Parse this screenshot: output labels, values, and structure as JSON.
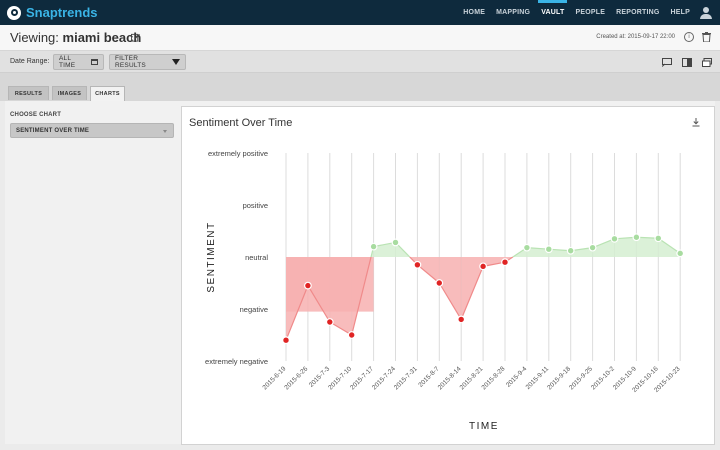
{
  "app": {
    "name": "Snaptrends"
  },
  "nav": {
    "items": [
      "HOME",
      "MAPPING",
      "VAULT",
      "PEOPLE",
      "REPORTING",
      "HELP"
    ],
    "active": "VAULT"
  },
  "header": {
    "viewing_label": "Viewing:",
    "vault_name": "miami beach",
    "created": "Created at: 2015-09-17 22:00"
  },
  "filters": {
    "date_range_label": "Date Range:",
    "date_range_value": "ALL TIME",
    "filter_button": "FILTER RESULTS"
  },
  "tabs": [
    "RESULTS",
    "IMAGES",
    "CHARTS"
  ],
  "active_tab": "CHARTS",
  "sidebar": {
    "choose_label": "CHOOSE CHART",
    "selected_chart": "SENTIMENT OVER TIME"
  },
  "colors": {
    "topbar": "#0e2a3d",
    "accent": "#3ab4e6",
    "negative": "#e02424",
    "positive": "#a8dca0",
    "negative_fill": "#f7b0b0",
    "positive_fill": "#d5efd1"
  },
  "icons": [
    "snaptrends-logo-icon",
    "user-icon",
    "edit-icon",
    "info-icon",
    "trash-icon",
    "calendar-icon",
    "funnel-icon",
    "screen-share-icon",
    "split-view-icon",
    "layers-icon",
    "download-icon"
  ],
  "chart_data": {
    "type": "area",
    "title": "Sentiment Over Time",
    "xlabel": "TIME",
    "ylabel": "SENTIMENT",
    "y_categories": [
      "extremely negative",
      "negative",
      "neutral",
      "positive",
      "extremely positive"
    ],
    "y_range": [
      -2,
      2
    ],
    "grid": "vertical",
    "x": [
      "2015-6-19",
      "2015-6-26",
      "2015-7-3",
      "2015-7-10",
      "2015-7-17",
      "2015-7-24",
      "2015-7-31",
      "2015-8-7",
      "2015-8-14",
      "2015-8-21",
      "2015-8-28",
      "2015-9-4",
      "2015-9-11",
      "2015-9-18",
      "2015-9-25",
      "2015-10-2",
      "2015-10-9",
      "2015-10-16",
      "2015-10-23"
    ],
    "points": [
      {
        "x": 0,
        "y": -1.6
      },
      {
        "x": 1,
        "y": -0.55
      },
      {
        "x": 2,
        "y": -1.25
      },
      {
        "x": 3,
        "y": -1.5
      },
      {
        "x": 4,
        "y": 0.2
      },
      {
        "x": 5,
        "y": 0.28
      },
      {
        "x": 6,
        "y": -0.15
      },
      {
        "x": 7,
        "y": -0.5
      },
      {
        "x": 8,
        "y": -1.2
      },
      {
        "x": 9,
        "y": -0.18
      },
      {
        "x": 10,
        "y": -0.1
      },
      {
        "x": 11,
        "y": 0.18
      },
      {
        "x": 12,
        "y": 0.15
      },
      {
        "x": 13,
        "y": 0.12
      },
      {
        "x": 14,
        "y": 0.18
      },
      {
        "x": 15,
        "y": 0.35
      },
      {
        "x": 16,
        "y": 0.38
      },
      {
        "x": 17,
        "y": 0.36
      },
      {
        "x": 18,
        "y": 0.07
      }
    ],
    "overlays": [
      {
        "from": 0,
        "to": 4,
        "level": -1.05
      }
    ]
  }
}
